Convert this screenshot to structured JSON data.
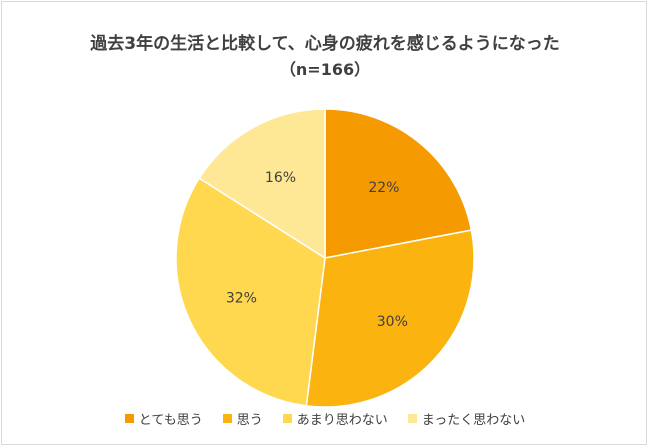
{
  "chart_data": {
    "type": "pie",
    "title": "過去3年の生活と比較して、心身の疲れを感じるようになった",
    "subtitle": "（n=166）",
    "slices": [
      {
        "label": "とても思う",
        "value": 22,
        "display": "22%",
        "color": "#F59A00"
      },
      {
        "label": "思う",
        "value": 30,
        "display": "30%",
        "color": "#FBB310"
      },
      {
        "label": "あまり思わない",
        "value": 32,
        "display": "32%",
        "color": "#FFD84F"
      },
      {
        "label": "まったく思わない",
        "value": 16,
        "display": "16%",
        "color": "#FFE895"
      }
    ],
    "legend_position": "bottom"
  }
}
